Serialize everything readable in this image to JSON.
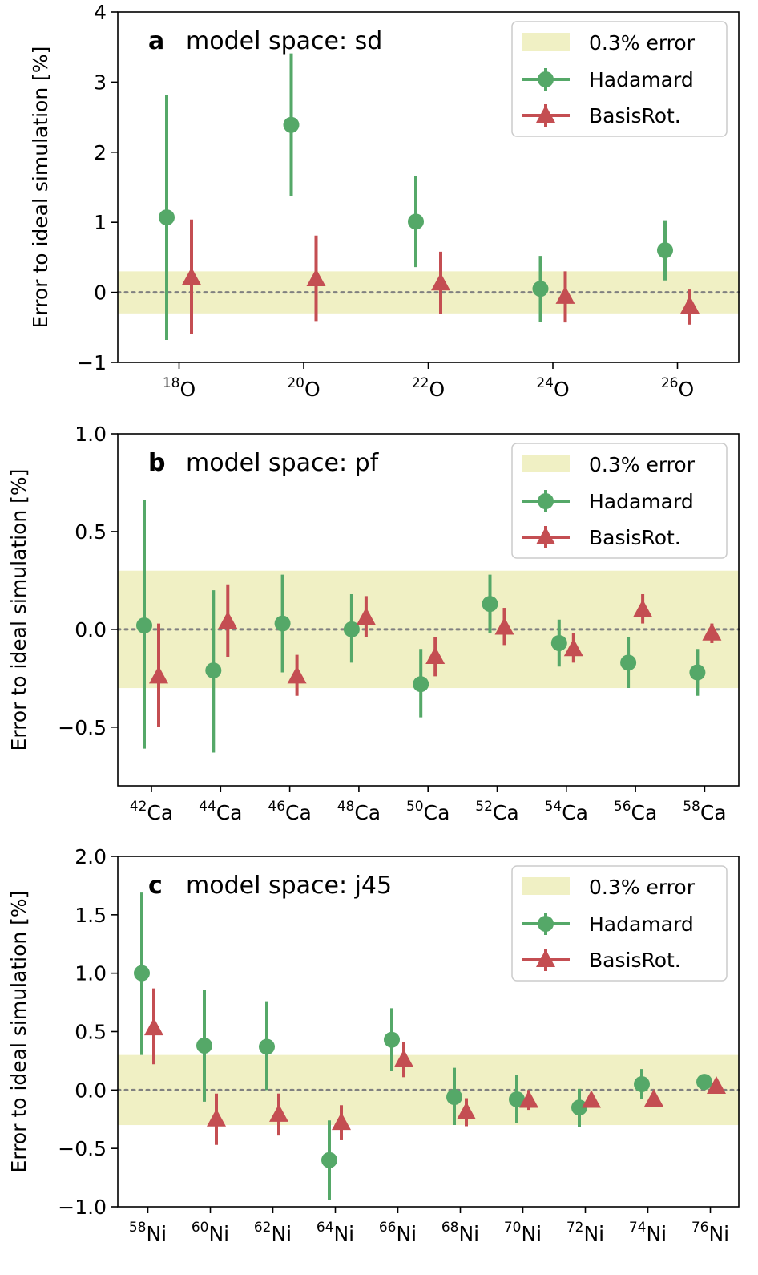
{
  "colors": {
    "hadamard": "#55a868",
    "basisrot": "#c44e52",
    "band": "#f0f0c4",
    "zero_line": "#808080"
  },
  "chart_data": [
    {
      "type": "scatter",
      "panel_letter": "a",
      "title": "model space: sd",
      "ylabel": "Error to ideal simulation [%]",
      "ylim": [
        -1,
        4
      ],
      "yticks": [
        -1,
        0,
        1,
        2,
        3,
        4
      ],
      "ytick_labels": [
        "−1",
        "0",
        "1",
        "2",
        "3",
        "4"
      ],
      "categories": [
        {
          "mass": "18",
          "element": "O"
        },
        {
          "mass": "20",
          "element": "O"
        },
        {
          "mass": "22",
          "element": "O"
        },
        {
          "mass": "24",
          "element": "O"
        },
        {
          "mass": "26",
          "element": "O"
        }
      ],
      "band": [
        -0.3,
        0.3
      ],
      "legend": [
        "0.3% error",
        "Hadamard",
        "BasisRot."
      ],
      "series": [
        {
          "name": "Hadamard",
          "marker": "circle",
          "values": [
            1.07,
            2.39,
            1.01,
            0.05,
            0.6
          ],
          "err_low": [
            -0.68,
            1.38,
            0.36,
            -0.42,
            0.17
          ],
          "err_high": [
            2.82,
            3.41,
            1.66,
            0.52,
            1.03
          ]
        },
        {
          "name": "BasisRot.",
          "marker": "triangle",
          "values": [
            0.21,
            0.19,
            0.13,
            -0.06,
            -0.2
          ],
          "err_low": [
            -0.6,
            -0.41,
            -0.31,
            -0.43,
            -0.46
          ],
          "err_high": [
            1.04,
            0.81,
            0.58,
            0.3,
            0.04
          ]
        }
      ]
    },
    {
      "type": "scatter",
      "panel_letter": "b",
      "title": "model space: pf",
      "ylabel": "Error to ideal simulation [%]",
      "ylim": [
        -0.8,
        1.0
      ],
      "yticks": [
        -0.5,
        0.0,
        0.5,
        1.0
      ],
      "ytick_labels": [
        "−0.5",
        "0.0",
        "0.5",
        "1.0"
      ],
      "categories": [
        {
          "mass": "42",
          "element": "Ca"
        },
        {
          "mass": "44",
          "element": "Ca"
        },
        {
          "mass": "46",
          "element": "Ca"
        },
        {
          "mass": "48",
          "element": "Ca"
        },
        {
          "mass": "50",
          "element": "Ca"
        },
        {
          "mass": "52",
          "element": "Ca"
        },
        {
          "mass": "54",
          "element": "Ca"
        },
        {
          "mass": "56",
          "element": "Ca"
        },
        {
          "mass": "58",
          "element": "Ca"
        }
      ],
      "band": [
        -0.3,
        0.3
      ],
      "legend": [
        "0.3% error",
        "Hadamard",
        "BasisRot."
      ],
      "series": [
        {
          "name": "Hadamard",
          "marker": "circle",
          "values": [
            0.02,
            -0.21,
            0.03,
            0.0,
            -0.28,
            0.13,
            -0.07,
            -0.17,
            -0.22
          ],
          "err_low": [
            -0.61,
            -0.63,
            -0.22,
            -0.17,
            -0.45,
            -0.02,
            -0.19,
            -0.3,
            -0.34
          ],
          "err_high": [
            0.66,
            0.2,
            0.28,
            0.18,
            -0.1,
            0.28,
            0.05,
            -0.04,
            -0.1
          ]
        },
        {
          "name": "BasisRot.",
          "marker": "triangle",
          "values": [
            -0.24,
            0.04,
            -0.24,
            0.06,
            -0.14,
            0.01,
            -0.1,
            0.1,
            -0.02
          ],
          "err_low": [
            -0.5,
            -0.14,
            -0.34,
            -0.04,
            -0.24,
            -0.08,
            -0.17,
            0.03,
            -0.07
          ],
          "err_high": [
            0.03,
            0.23,
            -0.13,
            0.17,
            -0.04,
            0.11,
            -0.02,
            0.18,
            0.03
          ]
        }
      ]
    },
    {
      "type": "scatter",
      "panel_letter": "c",
      "title": "model space: j45",
      "ylabel": "Error to ideal simulation [%]",
      "ylim": [
        -1.0,
        2.0
      ],
      "yticks": [
        -1.0,
        -0.5,
        0.0,
        0.5,
        1.0,
        1.5,
        2.0
      ],
      "ytick_labels": [
        "−1.0",
        "−0.5",
        "0.0",
        "0.5",
        "1.0",
        "1.5",
        "2.0"
      ],
      "categories": [
        {
          "mass": "58",
          "element": "Ni"
        },
        {
          "mass": "60",
          "element": "Ni"
        },
        {
          "mass": "62",
          "element": "Ni"
        },
        {
          "mass": "64",
          "element": "Ni"
        },
        {
          "mass": "66",
          "element": "Ni"
        },
        {
          "mass": "68",
          "element": "Ni"
        },
        {
          "mass": "70",
          "element": "Ni"
        },
        {
          "mass": "72",
          "element": "Ni"
        },
        {
          "mass": "74",
          "element": "Ni"
        },
        {
          "mass": "76",
          "element": "Ni"
        }
      ],
      "band": [
        -0.3,
        0.3
      ],
      "legend": [
        "0.3% error",
        "Hadamard",
        "BasisRot."
      ],
      "series": [
        {
          "name": "Hadamard",
          "marker": "circle",
          "values": [
            1.0,
            0.38,
            0.37,
            -0.6,
            0.43,
            -0.06,
            -0.08,
            -0.15,
            0.05,
            0.07
          ],
          "err_low": [
            0.3,
            -0.1,
            0.0,
            -0.94,
            0.16,
            -0.3,
            -0.28,
            -0.32,
            -0.08,
            0.02
          ],
          "err_high": [
            1.69,
            0.86,
            0.76,
            -0.26,
            0.7,
            0.19,
            0.13,
            0.01,
            0.18,
            0.13
          ]
        },
        {
          "name": "BasisRot.",
          "marker": "triangle",
          "values": [
            0.53,
            -0.25,
            -0.21,
            -0.28,
            0.26,
            -0.19,
            -0.09,
            -0.09,
            -0.08,
            0.03
          ],
          "err_low": [
            0.22,
            -0.47,
            -0.39,
            -0.43,
            0.11,
            -0.31,
            -0.17,
            -0.1,
            -0.09,
            0.02
          ],
          "err_high": [
            0.87,
            -0.03,
            -0.03,
            -0.13,
            0.41,
            -0.07,
            0.0,
            -0.07,
            -0.06,
            0.04
          ]
        }
      ]
    }
  ]
}
